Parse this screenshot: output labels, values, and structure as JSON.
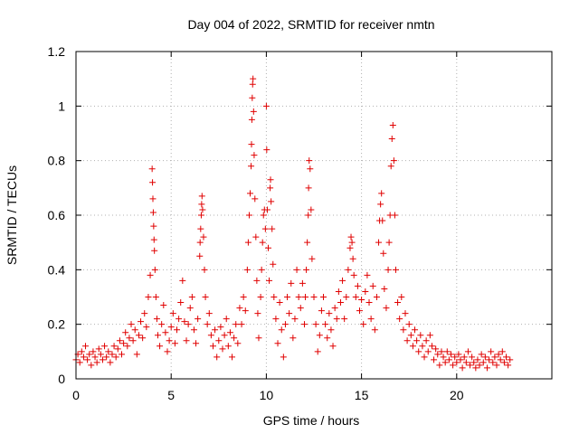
{
  "chart_data": {
    "type": "scatter",
    "title": "Day 004 of 2022, SRMTID for receiver nmtn",
    "xlabel": "GPS time / hours",
    "ylabel": "SRMTID / TECUs",
    "xlim": [
      0,
      25
    ],
    "ylim": [
      0,
      1.2
    ],
    "xticks": [
      0,
      5,
      10,
      15,
      20
    ],
    "xtick_labels": [
      "0",
      "5",
      "10",
      "15",
      "20"
    ],
    "yticks": [
      0,
      0.2,
      0.4,
      0.6,
      0.8,
      1,
      1.2
    ],
    "ytick_labels": [
      "0",
      "0.2",
      "0.4",
      "0.6",
      "0.8",
      "1",
      "1.2"
    ],
    "grid": true,
    "marker": "plus",
    "marker_color": "#e00000",
    "series": [
      {
        "name": "SRMTID",
        "points": [
          [
            0.0,
            0.07
          ],
          [
            0.1,
            0.09
          ],
          [
            0.2,
            0.06
          ],
          [
            0.3,
            0.1
          ],
          [
            0.4,
            0.08
          ],
          [
            0.5,
            0.12
          ],
          [
            0.6,
            0.07
          ],
          [
            0.7,
            0.09
          ],
          [
            0.8,
            0.05
          ],
          [
            0.9,
            0.1
          ],
          [
            1.0,
            0.08
          ],
          [
            1.1,
            0.06
          ],
          [
            1.2,
            0.11
          ],
          [
            1.3,
            0.09
          ],
          [
            1.4,
            0.07
          ],
          [
            1.5,
            0.12
          ],
          [
            1.6,
            0.08
          ],
          [
            1.7,
            0.1
          ],
          [
            1.8,
            0.06
          ],
          [
            1.9,
            0.09
          ],
          [
            2.0,
            0.12
          ],
          [
            2.1,
            0.08
          ],
          [
            2.2,
            0.11
          ],
          [
            2.3,
            0.14
          ],
          [
            2.4,
            0.09
          ],
          [
            2.5,
            0.13
          ],
          [
            2.6,
            0.17
          ],
          [
            2.7,
            0.12
          ],
          [
            2.8,
            0.15
          ],
          [
            2.9,
            0.2
          ],
          [
            3.0,
            0.14
          ],
          [
            3.1,
            0.18
          ],
          [
            3.2,
            0.09
          ],
          [
            3.3,
            0.16
          ],
          [
            3.4,
            0.21
          ],
          [
            3.5,
            0.15
          ],
          [
            3.6,
            0.24
          ],
          [
            3.7,
            0.19
          ],
          [
            3.8,
            0.3
          ],
          [
            3.9,
            0.38
          ],
          [
            4.0,
            0.77
          ],
          [
            4.02,
            0.72
          ],
          [
            4.04,
            0.66
          ],
          [
            4.06,
            0.61
          ],
          [
            4.08,
            0.56
          ],
          [
            4.1,
            0.51
          ],
          [
            4.12,
            0.47
          ],
          [
            4.15,
            0.4
          ],
          [
            4.2,
            0.3
          ],
          [
            4.25,
            0.22
          ],
          [
            4.3,
            0.16
          ],
          [
            4.4,
            0.12
          ],
          [
            4.5,
            0.2
          ],
          [
            4.6,
            0.27
          ],
          [
            4.7,
            0.17
          ],
          [
            4.8,
            0.1
          ],
          [
            4.9,
            0.14
          ],
          [
            5.0,
            0.19
          ],
          [
            5.1,
            0.24
          ],
          [
            5.2,
            0.13
          ],
          [
            5.3,
            0.18
          ],
          [
            5.4,
            0.22
          ],
          [
            5.5,
            0.28
          ],
          [
            5.6,
            0.36
          ],
          [
            5.7,
            0.21
          ],
          [
            5.8,
            0.14
          ],
          [
            5.9,
            0.2
          ],
          [
            6.0,
            0.26
          ],
          [
            6.1,
            0.3
          ],
          [
            6.2,
            0.18
          ],
          [
            6.3,
            0.13
          ],
          [
            6.4,
            0.22
          ],
          [
            6.5,
            0.45
          ],
          [
            6.52,
            0.5
          ],
          [
            6.55,
            0.55
          ],
          [
            6.58,
            0.6
          ],
          [
            6.6,
            0.64
          ],
          [
            6.62,
            0.67
          ],
          [
            6.65,
            0.62
          ],
          [
            6.7,
            0.52
          ],
          [
            6.75,
            0.4
          ],
          [
            6.8,
            0.3
          ],
          [
            6.9,
            0.2
          ],
          [
            7.0,
            0.24
          ],
          [
            7.1,
            0.16
          ],
          [
            7.2,
            0.12
          ],
          [
            7.3,
            0.18
          ],
          [
            7.4,
            0.08
          ],
          [
            7.5,
            0.14
          ],
          [
            7.6,
            0.19
          ],
          [
            7.7,
            0.11
          ],
          [
            7.8,
            0.16
          ],
          [
            7.9,
            0.22
          ],
          [
            8.0,
            0.12
          ],
          [
            8.1,
            0.17
          ],
          [
            8.2,
            0.08
          ],
          [
            8.3,
            0.15
          ],
          [
            8.4,
            0.2
          ],
          [
            8.5,
            0.13
          ],
          [
            8.6,
            0.26
          ],
          [
            8.7,
            0.2
          ],
          [
            8.8,
            0.3
          ],
          [
            8.9,
            0.25
          ],
          [
            9.0,
            0.4
          ],
          [
            9.05,
            0.5
          ],
          [
            9.1,
            0.6
          ],
          [
            9.15,
            0.68
          ],
          [
            9.2,
            0.78
          ],
          [
            9.22,
            0.86
          ],
          [
            9.24,
            0.95
          ],
          [
            9.26,
            1.03
          ],
          [
            9.28,
            1.08
          ],
          [
            9.3,
            1.1
          ],
          [
            9.33,
            0.98
          ],
          [
            9.36,
            0.82
          ],
          [
            9.4,
            0.66
          ],
          [
            9.45,
            0.52
          ],
          [
            9.5,
            0.36
          ],
          [
            9.55,
            0.24
          ],
          [
            9.6,
            0.15
          ],
          [
            9.7,
            0.3
          ],
          [
            9.75,
            0.4
          ],
          [
            9.8,
            0.5
          ],
          [
            9.85,
            0.6
          ],
          [
            9.9,
            0.62
          ],
          [
            9.95,
            0.55
          ],
          [
            10.0,
            1.0
          ],
          [
            10.02,
            0.84
          ],
          [
            10.05,
            0.62
          ],
          [
            10.1,
            0.48
          ],
          [
            10.15,
            0.36
          ],
          [
            10.2,
            0.7
          ],
          [
            10.22,
            0.73
          ],
          [
            10.25,
            0.65
          ],
          [
            10.3,
            0.55
          ],
          [
            10.35,
            0.42
          ],
          [
            10.4,
            0.3
          ],
          [
            10.5,
            0.22
          ],
          [
            10.6,
            0.13
          ],
          [
            10.7,
            0.28
          ],
          [
            10.8,
            0.18
          ],
          [
            10.9,
            0.08
          ],
          [
            11.0,
            0.2
          ],
          [
            11.1,
            0.3
          ],
          [
            11.2,
            0.24
          ],
          [
            11.3,
            0.35
          ],
          [
            11.4,
            0.15
          ],
          [
            11.5,
            0.22
          ],
          [
            11.6,
            0.4
          ],
          [
            11.7,
            0.3
          ],
          [
            11.8,
            0.26
          ],
          [
            11.9,
            0.35
          ],
          [
            12.0,
            0.2
          ],
          [
            12.05,
            0.3
          ],
          [
            12.1,
            0.4
          ],
          [
            12.15,
            0.5
          ],
          [
            12.2,
            0.6
          ],
          [
            12.22,
            0.7
          ],
          [
            12.25,
            0.8
          ],
          [
            12.3,
            0.77
          ],
          [
            12.35,
            0.62
          ],
          [
            12.4,
            0.44
          ],
          [
            12.5,
            0.3
          ],
          [
            12.6,
            0.2
          ],
          [
            12.7,
            0.1
          ],
          [
            12.8,
            0.16
          ],
          [
            12.9,
            0.25
          ],
          [
            13.0,
            0.3
          ],
          [
            13.1,
            0.2
          ],
          [
            13.2,
            0.15
          ],
          [
            13.3,
            0.24
          ],
          [
            13.4,
            0.18
          ],
          [
            13.5,
            0.12
          ],
          [
            13.6,
            0.26
          ],
          [
            13.7,
            0.22
          ],
          [
            13.8,
            0.32
          ],
          [
            13.9,
            0.28
          ],
          [
            14.0,
            0.36
          ],
          [
            14.1,
            0.22
          ],
          [
            14.2,
            0.3
          ],
          [
            14.3,
            0.4
          ],
          [
            14.4,
            0.48
          ],
          [
            14.45,
            0.52
          ],
          [
            14.5,
            0.5
          ],
          [
            14.55,
            0.44
          ],
          [
            14.6,
            0.38
          ],
          [
            14.7,
            0.3
          ],
          [
            14.8,
            0.34
          ],
          [
            14.9,
            0.25
          ],
          [
            15.0,
            0.29
          ],
          [
            15.1,
            0.2
          ],
          [
            15.2,
            0.32
          ],
          [
            15.3,
            0.38
          ],
          [
            15.4,
            0.28
          ],
          [
            15.5,
            0.22
          ],
          [
            15.6,
            0.34
          ],
          [
            15.7,
            0.18
          ],
          [
            15.8,
            0.3
          ],
          [
            15.9,
            0.5
          ],
          [
            15.95,
            0.58
          ],
          [
            16.0,
            0.64
          ],
          [
            16.05,
            0.68
          ],
          [
            16.1,
            0.58
          ],
          [
            16.15,
            0.46
          ],
          [
            16.2,
            0.33
          ],
          [
            16.3,
            0.26
          ],
          [
            16.4,
            0.4
          ],
          [
            16.45,
            0.5
          ],
          [
            16.5,
            0.6
          ],
          [
            16.55,
            0.78
          ],
          [
            16.6,
            0.88
          ],
          [
            16.65,
            0.93
          ],
          [
            16.7,
            0.8
          ],
          [
            16.75,
            0.6
          ],
          [
            16.8,
            0.4
          ],
          [
            16.9,
            0.28
          ],
          [
            17.0,
            0.22
          ],
          [
            17.1,
            0.3
          ],
          [
            17.2,
            0.18
          ],
          [
            17.3,
            0.24
          ],
          [
            17.4,
            0.14
          ],
          [
            17.5,
            0.2
          ],
          [
            17.6,
            0.16
          ],
          [
            17.7,
            0.12
          ],
          [
            17.8,
            0.18
          ],
          [
            17.9,
            0.14
          ],
          [
            18.0,
            0.1
          ],
          [
            18.1,
            0.16
          ],
          [
            18.2,
            0.12
          ],
          [
            18.3,
            0.08
          ],
          [
            18.4,
            0.14
          ],
          [
            18.5,
            0.1
          ],
          [
            18.6,
            0.16
          ],
          [
            18.7,
            0.12
          ],
          [
            18.8,
            0.07
          ],
          [
            18.9,
            0.11
          ],
          [
            19.0,
            0.09
          ],
          [
            19.1,
            0.05
          ],
          [
            19.2,
            0.1
          ],
          [
            19.3,
            0.08
          ],
          [
            19.4,
            0.06
          ],
          [
            19.5,
            0.1
          ],
          [
            19.6,
            0.07
          ],
          [
            19.7,
            0.09
          ],
          [
            19.8,
            0.05
          ],
          [
            19.9,
            0.08
          ],
          [
            20.0,
            0.06
          ],
          [
            20.1,
            0.09
          ],
          [
            20.2,
            0.07
          ],
          [
            20.3,
            0.04
          ],
          [
            20.4,
            0.08
          ],
          [
            20.5,
            0.06
          ],
          [
            20.6,
            0.1
          ],
          [
            20.7,
            0.05
          ],
          [
            20.8,
            0.08
          ],
          [
            20.9,
            0.06
          ],
          [
            21.0,
            0.04
          ],
          [
            21.1,
            0.07
          ],
          [
            21.2,
            0.05
          ],
          [
            21.3,
            0.09
          ],
          [
            21.4,
            0.06
          ],
          [
            21.5,
            0.08
          ],
          [
            21.6,
            0.04
          ],
          [
            21.7,
            0.07
          ],
          [
            21.8,
            0.1
          ],
          [
            21.9,
            0.06
          ],
          [
            22.0,
            0.08
          ],
          [
            22.1,
            0.05
          ],
          [
            22.2,
            0.09
          ],
          [
            22.3,
            0.07
          ],
          [
            22.4,
            0.1
          ],
          [
            22.5,
            0.06
          ],
          [
            22.6,
            0.08
          ],
          [
            22.7,
            0.05
          ],
          [
            22.8,
            0.07
          ]
        ]
      }
    ]
  }
}
